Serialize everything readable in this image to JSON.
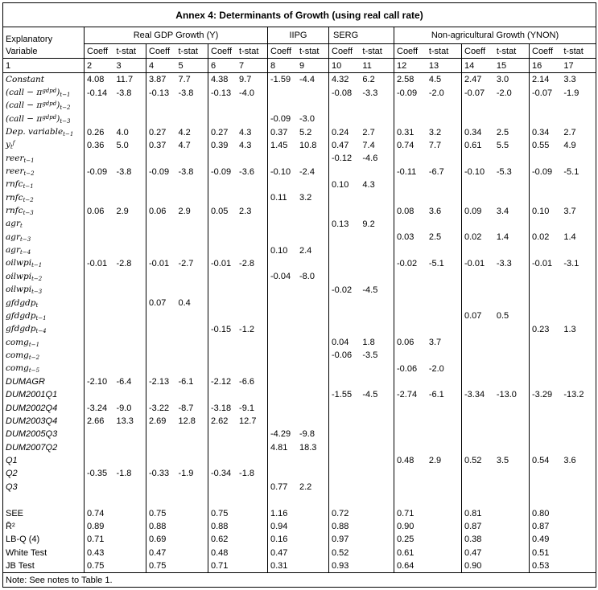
{
  "title": "Annex 4: Determinants of Growth (using real call rate)",
  "note": "Note: See notes to Table 1.",
  "table": {
    "label_header_line1": "Explanatory",
    "label_header_line2": "Variable",
    "groups": [
      {
        "label": "Real GDP Growth (Y)",
        "pairs": 3
      },
      {
        "label": "IIPG",
        "pairs": 1
      },
      {
        "label": "SERG",
        "pairs": 1
      },
      {
        "label": "Non-agricultural Growth (YNON)",
        "pairs": 3
      }
    ],
    "pair_header": [
      "Coeff",
      "t-stat"
    ],
    "column_numbers": [
      "1",
      "2",
      "3",
      "4",
      "5",
      "6",
      "7",
      "8",
      "9",
      "10",
      "11",
      "12",
      "13",
      "14",
      "15",
      "16",
      "17"
    ],
    "rows": [
      {
        "font": "m",
        "label": [
          [
            "t",
            "Constant"
          ]
        ],
        "cells": [
          "4.08",
          "11.7",
          "3.87",
          "7.7",
          "4.38",
          "9.7",
          "-1.59",
          "-4.4",
          "4.32",
          "6.2",
          "2.58",
          "4.5",
          "2.47",
          "3.0",
          "2.14",
          "3.3"
        ]
      },
      {
        "font": "m",
        "label": [
          [
            "t",
            "(call − π"
          ],
          [
            "p",
            "gdpd"
          ],
          [
            "t",
            ")"
          ],
          [
            "b",
            "t−1"
          ]
        ],
        "cells": [
          "-0.14",
          "-3.8",
          "-0.13",
          "-3.8",
          "-0.13",
          "-4.0",
          "",
          "",
          "-0.08",
          "-3.3",
          "-0.09",
          "-2.0",
          "-0.07",
          "-2.0",
          "-0.07",
          "-1.9"
        ]
      },
      {
        "font": "m",
        "label": [
          [
            "t",
            "(call − π"
          ],
          [
            "p",
            "gdpd"
          ],
          [
            "t",
            ")"
          ],
          [
            "b",
            "t−2"
          ]
        ],
        "cells": [
          "",
          "",
          "",
          "",
          "",
          "",
          "",
          "",
          "",
          "",
          "",
          "",
          "",
          "",
          "",
          ""
        ]
      },
      {
        "font": "m",
        "label": [
          [
            "t",
            "(call − π"
          ],
          [
            "p",
            "gdpd"
          ],
          [
            "t",
            ")"
          ],
          [
            "b",
            "t−3"
          ]
        ],
        "cells": [
          "",
          "",
          "",
          "",
          "",
          "",
          "-0.09",
          "-3.0",
          "",
          "",
          "",
          "",
          "",
          "",
          "",
          ""
        ]
      },
      {
        "font": "m",
        "label": [
          [
            "t",
            "Dep. variable"
          ],
          [
            "b",
            "t−1"
          ]
        ],
        "cells": [
          "0.26",
          "4.0",
          "0.27",
          "4.2",
          "0.27",
          "4.3",
          "0.37",
          "5.2",
          "0.24",
          "2.7",
          "0.31",
          "3.2",
          "0.34",
          "2.5",
          "0.34",
          "2.7"
        ]
      },
      {
        "font": "m",
        "label": [
          [
            "t",
            "y"
          ],
          [
            "b",
            "t"
          ],
          [
            "p",
            "f"
          ]
        ],
        "cells": [
          "0.36",
          "5.0",
          "0.37",
          "4.7",
          "0.39",
          "4.3",
          "1.45",
          "10.8",
          "0.47",
          "7.4",
          "0.74",
          "7.7",
          "0.61",
          "5.5",
          "0.55",
          "4.9"
        ]
      },
      {
        "font": "m",
        "label": [
          [
            "t",
            "reer"
          ],
          [
            "b",
            "t−1"
          ]
        ],
        "cells": [
          "",
          "",
          "",
          "",
          "",
          "",
          "",
          "",
          "-0.12",
          "-4.6",
          "",
          "",
          "",
          "",
          "",
          ""
        ]
      },
      {
        "font": "m",
        "label": [
          [
            "t",
            "reer"
          ],
          [
            "b",
            "t−2"
          ]
        ],
        "cells": [
          "-0.09",
          "-3.8",
          "-0.09",
          "-3.8",
          "-0.09",
          "-3.6",
          "-0.10",
          "-2.4",
          "",
          "",
          "-0.11",
          "-6.7",
          "-0.10",
          "-5.3",
          "-0.09",
          "-5.1"
        ]
      },
      {
        "font": "m",
        "label": [
          [
            "t",
            "rnfc"
          ],
          [
            "b",
            "t−1"
          ]
        ],
        "cells": [
          "",
          "",
          "",
          "",
          "",
          "",
          "",
          "",
          "0.10",
          "4.3",
          "",
          "",
          "",
          "",
          "",
          ""
        ]
      },
      {
        "font": "m",
        "label": [
          [
            "t",
            "rnfc"
          ],
          [
            "b",
            "t−2"
          ]
        ],
        "cells": [
          "",
          "",
          "",
          "",
          "",
          "",
          "0.11",
          "3.2",
          "",
          "",
          "",
          "",
          "",
          "",
          "",
          ""
        ]
      },
      {
        "font": "m",
        "label": [
          [
            "t",
            "rnfc"
          ],
          [
            "b",
            "t−3"
          ]
        ],
        "cells": [
          "0.06",
          "2.9",
          "0.06",
          "2.9",
          "0.05",
          "2.3",
          "",
          "",
          "",
          "",
          "0.08",
          "3.6",
          "0.09",
          "3.4",
          "0.10",
          "3.7"
        ]
      },
      {
        "font": "m",
        "label": [
          [
            "t",
            "agr"
          ],
          [
            "b",
            "t"
          ]
        ],
        "cells": [
          "",
          "",
          "",
          "",
          "",
          "",
          "",
          "",
          "0.13",
          "9.2",
          "",
          "",
          "",
          "",
          "",
          ""
        ]
      },
      {
        "font": "m",
        "label": [
          [
            "t",
            "agr"
          ],
          [
            "b",
            "t−3"
          ]
        ],
        "cells": [
          "",
          "",
          "",
          "",
          "",
          "",
          "",
          "",
          "",
          "",
          "0.03",
          "2.5",
          "0.02",
          "1.4",
          "0.02",
          "1.4"
        ]
      },
      {
        "font": "m",
        "label": [
          [
            "t",
            "agr"
          ],
          [
            "b",
            "t−4"
          ]
        ],
        "cells": [
          "",
          "",
          "",
          "",
          "",
          "",
          "0.10",
          "2.4",
          "",
          "",
          "",
          "",
          "",
          "",
          "",
          ""
        ]
      },
      {
        "font": "m",
        "label": [
          [
            "t",
            "oilwpi"
          ],
          [
            "b",
            "t−1"
          ]
        ],
        "cells": [
          "-0.01",
          "-2.8",
          "-0.01",
          "-2.7",
          "-0.01",
          "-2.8",
          "",
          "",
          "",
          "",
          "-0.02",
          "-5.1",
          "-0.01",
          "-3.3",
          "-0.01",
          "-3.1"
        ]
      },
      {
        "font": "m",
        "label": [
          [
            "t",
            "oilwpi"
          ],
          [
            "b",
            "t−2"
          ]
        ],
        "cells": [
          "",
          "",
          "",
          "",
          "",
          "",
          "-0.04",
          "-8.0",
          "",
          "",
          "",
          "",
          "",
          "",
          "",
          ""
        ]
      },
      {
        "font": "m",
        "label": [
          [
            "t",
            "oilwpi"
          ],
          [
            "b",
            "t−3"
          ]
        ],
        "cells": [
          "",
          "",
          "",
          "",
          "",
          "",
          "",
          "",
          "-0.02",
          "-4.5",
          "",
          "",
          "",
          "",
          "",
          ""
        ]
      },
      {
        "font": "m",
        "label": [
          [
            "t",
            "gfdgdp"
          ],
          [
            "b",
            "t"
          ]
        ],
        "cells": [
          "",
          "",
          "0.07",
          "0.4",
          "",
          "",
          "",
          "",
          "",
          "",
          "",
          "",
          "",
          "",
          "",
          ""
        ]
      },
      {
        "font": "m",
        "label": [
          [
            "t",
            "gfdgdp"
          ],
          [
            "b",
            "t−1"
          ]
        ],
        "cells": [
          "",
          "",
          "",
          "",
          "",
          "",
          "",
          "",
          "",
          "",
          "",
          "",
          "0.07",
          "0.5",
          "",
          ""
        ]
      },
      {
        "font": "m",
        "label": [
          [
            "t",
            "gfdgdp"
          ],
          [
            "b",
            "t−4"
          ]
        ],
        "cells": [
          "",
          "",
          "",
          "",
          "-0.15",
          "-1.2",
          "",
          "",
          "",
          "",
          "",
          "",
          "",
          "",
          "0.23",
          "1.3"
        ]
      },
      {
        "font": "m",
        "label": [
          [
            "t",
            "comg"
          ],
          [
            "b",
            "t−1"
          ]
        ],
        "cells": [
          "",
          "",
          "",
          "",
          "",
          "",
          "",
          "",
          "0.04",
          "1.8",
          "0.06",
          "3.7",
          "",
          "",
          "",
          ""
        ]
      },
      {
        "font": "m",
        "label": [
          [
            "t",
            "comg"
          ],
          [
            "b",
            "t−2"
          ]
        ],
        "cells": [
          "",
          "",
          "",
          "",
          "",
          "",
          "",
          "",
          "-0.06",
          "-3.5",
          "",
          "",
          "",
          "",
          "",
          ""
        ]
      },
      {
        "font": "m",
        "label": [
          [
            "t",
            "comg"
          ],
          [
            "b",
            "t−5"
          ]
        ],
        "cells": [
          "",
          "",
          "",
          "",
          "",
          "",
          "",
          "",
          "",
          "",
          "-0.06",
          "-2.0",
          "",
          "",
          "",
          ""
        ]
      },
      {
        "font": "d",
        "label": [
          [
            "t",
            "DUMAGR"
          ]
        ],
        "cells": [
          "-2.10",
          "-6.4",
          "-2.13",
          "-6.1",
          "-2.12",
          "-6.6",
          "",
          "",
          "",
          "",
          "",
          "",
          "",
          "",
          "",
          ""
        ]
      },
      {
        "font": "d",
        "label": [
          [
            "t",
            "DUM2001Q1"
          ]
        ],
        "cells": [
          "",
          "",
          "",
          "",
          "",
          "",
          "",
          "",
          "-1.55",
          "-4.5",
          "-2.74",
          "-6.1",
          "-3.34",
          "-13.0",
          "-3.29",
          "-13.2"
        ]
      },
      {
        "font": "d",
        "label": [
          [
            "t",
            "DUM2002Q4"
          ]
        ],
        "cells": [
          "-3.24",
          "-9.0",
          "-3.22",
          "-8.7",
          "-3.18",
          "-9.1",
          "",
          "",
          "",
          "",
          "",
          "",
          "",
          "",
          "",
          ""
        ]
      },
      {
        "font": "d",
        "label": [
          [
            "t",
            "DUM2003Q4"
          ]
        ],
        "cells": [
          "2.66",
          "13.3",
          "2.69",
          "12.8",
          "2.62",
          "12.7",
          "",
          "",
          "",
          "",
          "",
          "",
          "",
          "",
          "",
          ""
        ]
      },
      {
        "font": "d",
        "label": [
          [
            "t",
            "DUM2005Q3"
          ]
        ],
        "cells": [
          "",
          "",
          "",
          "",
          "",
          "",
          "-4.29",
          "-9.8",
          "",
          "",
          "",
          "",
          "",
          "",
          "",
          ""
        ]
      },
      {
        "font": "d",
        "label": [
          [
            "t",
            "DUM2007Q2"
          ]
        ],
        "cells": [
          "",
          "",
          "",
          "",
          "",
          "",
          "4.81",
          "18.3",
          "",
          "",
          "",
          "",
          "",
          "",
          "",
          ""
        ]
      },
      {
        "font": "d",
        "label": [
          [
            "t",
            "Q1"
          ]
        ],
        "cells": [
          "",
          "",
          "",
          "",
          "",
          "",
          "",
          "",
          "",
          "",
          "0.48",
          "2.9",
          "0.52",
          "3.5",
          "0.54",
          "3.6"
        ]
      },
      {
        "font": "d",
        "label": [
          [
            "t",
            "Q2"
          ]
        ],
        "cells": [
          "-0.35",
          "-1.8",
          "-0.33",
          "-1.9",
          "-0.34",
          "-1.8",
          "",
          "",
          "",
          "",
          "",
          "",
          "",
          "",
          "",
          ""
        ]
      },
      {
        "font": "d",
        "label": [
          [
            "t",
            "Q3"
          ]
        ],
        "cells": [
          "",
          "",
          "",
          "",
          "",
          "",
          "0.77",
          "2.2",
          "",
          "",
          "",
          "",
          "",
          "",
          "",
          ""
        ]
      },
      {
        "font": "s",
        "label": [],
        "cells": [
          "",
          "",
          "",
          "",
          "",
          "",
          "",
          "",
          "",
          "",
          "",
          "",
          "",
          "",
          "",
          ""
        ]
      },
      {
        "font": "s",
        "label": [
          [
            "t",
            "SEE"
          ]
        ],
        "cells": [
          "0.74",
          "",
          "0.75",
          "",
          "0.75",
          "",
          "1.16",
          "",
          "0.72",
          "",
          "0.71",
          "",
          "0.81",
          "",
          "0.80",
          ""
        ]
      },
      {
        "font": "s",
        "label": [
          [
            "t",
            "R̄²"
          ]
        ],
        "cells": [
          "0.89",
          "",
          "0.88",
          "",
          "0.88",
          "",
          "0.94",
          "",
          "0.88",
          "",
          "0.90",
          "",
          "0.87",
          "",
          "0.87",
          ""
        ]
      },
      {
        "font": "s",
        "label": [
          [
            "t",
            "LB-Q (4)"
          ]
        ],
        "cells": [
          "0.71",
          "",
          "0.69",
          "",
          "0.62",
          "",
          "0.16",
          "",
          "0.97",
          "",
          "0.25",
          "",
          "0.38",
          "",
          "0.49",
          ""
        ]
      },
      {
        "font": "s",
        "label": [
          [
            "t",
            "White Test"
          ]
        ],
        "cells": [
          "0.43",
          "",
          "0.47",
          "",
          "0.48",
          "",
          "0.47",
          "",
          "0.52",
          "",
          "0.61",
          "",
          "0.47",
          "",
          "0.51",
          ""
        ]
      },
      {
        "font": "s",
        "label": [
          [
            "t",
            "JB Test"
          ]
        ],
        "cells": [
          "0.75",
          "",
          "0.75",
          "",
          "0.71",
          "",
          "0.31",
          "",
          "0.93",
          "",
          "0.64",
          "",
          "0.90",
          "",
          "0.53",
          ""
        ]
      }
    ]
  }
}
